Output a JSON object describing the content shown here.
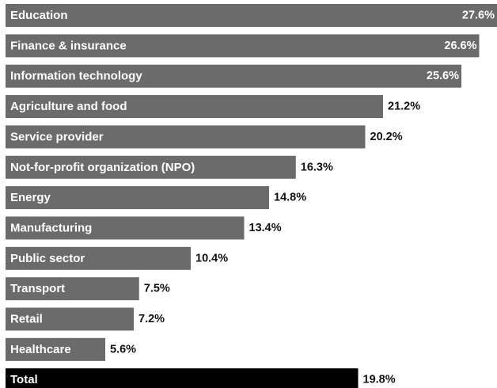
{
  "chart_data": {
    "type": "bar",
    "orientation": "horizontal",
    "categories": [
      "Education",
      "Finance & insurance",
      "Information technology",
      "Agriculture and food",
      "Service provider",
      "Not-for-profit organization (NPO)",
      "Energy",
      "Manufacturing",
      "Public sector",
      "Transport",
      "Retail",
      "Healthcare",
      "Total"
    ],
    "values": [
      27.6,
      26.6,
      25.6,
      21.2,
      20.2,
      16.3,
      14.8,
      13.4,
      10.4,
      7.5,
      7.2,
      5.6,
      19.8
    ],
    "value_labels": [
      "27.6%",
      "26.6%",
      "25.6%",
      "21.2%",
      "20.2%",
      "16.3%",
      "14.8%",
      "13.4%",
      "10.4%",
      "7.5%",
      "7.2%",
      "5.6%",
      "19.8%"
    ],
    "highlight": "Total",
    "title": "",
    "xlabel": "",
    "ylabel": "",
    "xlim": [
      0,
      27.6
    ],
    "grid": false,
    "legend": "none",
    "colors": {
      "bar": "#6b6b6b",
      "total_bar": "#000000",
      "bar_text": "#ffffff",
      "value_text": "#111111"
    }
  }
}
